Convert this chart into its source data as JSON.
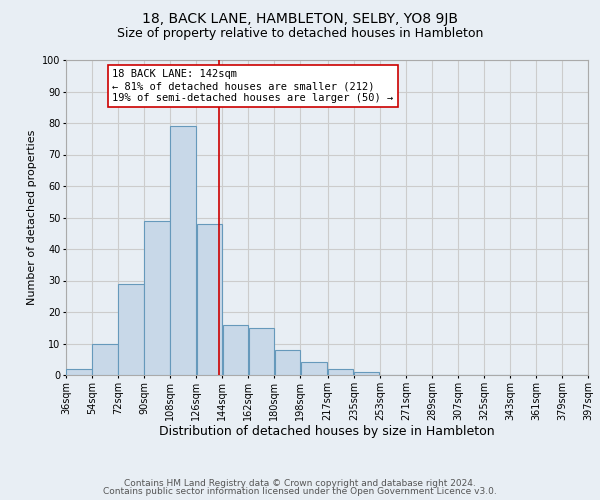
{
  "title": "18, BACK LANE, HAMBLETON, SELBY, YO8 9JB",
  "subtitle": "Size of property relative to detached houses in Hambleton",
  "xlabel": "Distribution of detached houses by size in Hambleton",
  "ylabel": "Number of detached properties",
  "bar_left_edges": [
    36,
    54,
    72,
    90,
    108,
    126,
    144,
    162,
    180,
    198,
    217,
    235,
    253,
    271,
    289,
    307,
    325,
    343,
    361,
    379
  ],
  "bar_widths": [
    18,
    18,
    18,
    18,
    18,
    18,
    18,
    18,
    18,
    19,
    18,
    18,
    18,
    18,
    18,
    18,
    18,
    18,
    18,
    18
  ],
  "bar_heights": [
    2,
    10,
    29,
    49,
    79,
    48,
    16,
    15,
    8,
    4,
    2,
    1,
    0,
    0,
    0,
    0,
    0,
    0,
    0,
    0
  ],
  "bar_facecolor": "#c8d8e8",
  "bar_edgecolor": "#6699bb",
  "reference_line_x": 142,
  "reference_line_color": "#cc0000",
  "annotation_text": "18 BACK LANE: 142sqm\n← 81% of detached houses are smaller (212)\n19% of semi-detached houses are larger (50) →",
  "annotation_box_edgecolor": "#cc0000",
  "annotation_box_facecolor": "#ffffff",
  "xlim": [
    36,
    397
  ],
  "ylim": [
    0,
    100
  ],
  "yticks": [
    0,
    10,
    20,
    30,
    40,
    50,
    60,
    70,
    80,
    90,
    100
  ],
  "xtick_labels": [
    "36sqm",
    "54sqm",
    "72sqm",
    "90sqm",
    "108sqm",
    "126sqm",
    "144sqm",
    "162sqm",
    "180sqm",
    "198sqm",
    "217sqm",
    "235sqm",
    "253sqm",
    "271sqm",
    "289sqm",
    "307sqm",
    "325sqm",
    "343sqm",
    "361sqm",
    "379sqm",
    "397sqm"
  ],
  "xtick_positions": [
    36,
    54,
    72,
    90,
    108,
    126,
    144,
    162,
    180,
    198,
    217,
    235,
    253,
    271,
    289,
    307,
    325,
    343,
    361,
    379,
    397
  ],
  "grid_color": "#cccccc",
  "background_color": "#e8eef4",
  "footer_line1": "Contains HM Land Registry data © Crown copyright and database right 2024.",
  "footer_line2": "Contains public sector information licensed under the Open Government Licence v3.0.",
  "title_fontsize": 10,
  "subtitle_fontsize": 9,
  "xlabel_fontsize": 9,
  "ylabel_fontsize": 8,
  "tick_fontsize": 7,
  "annotation_fontsize": 7.5,
  "footer_fontsize": 6.5
}
